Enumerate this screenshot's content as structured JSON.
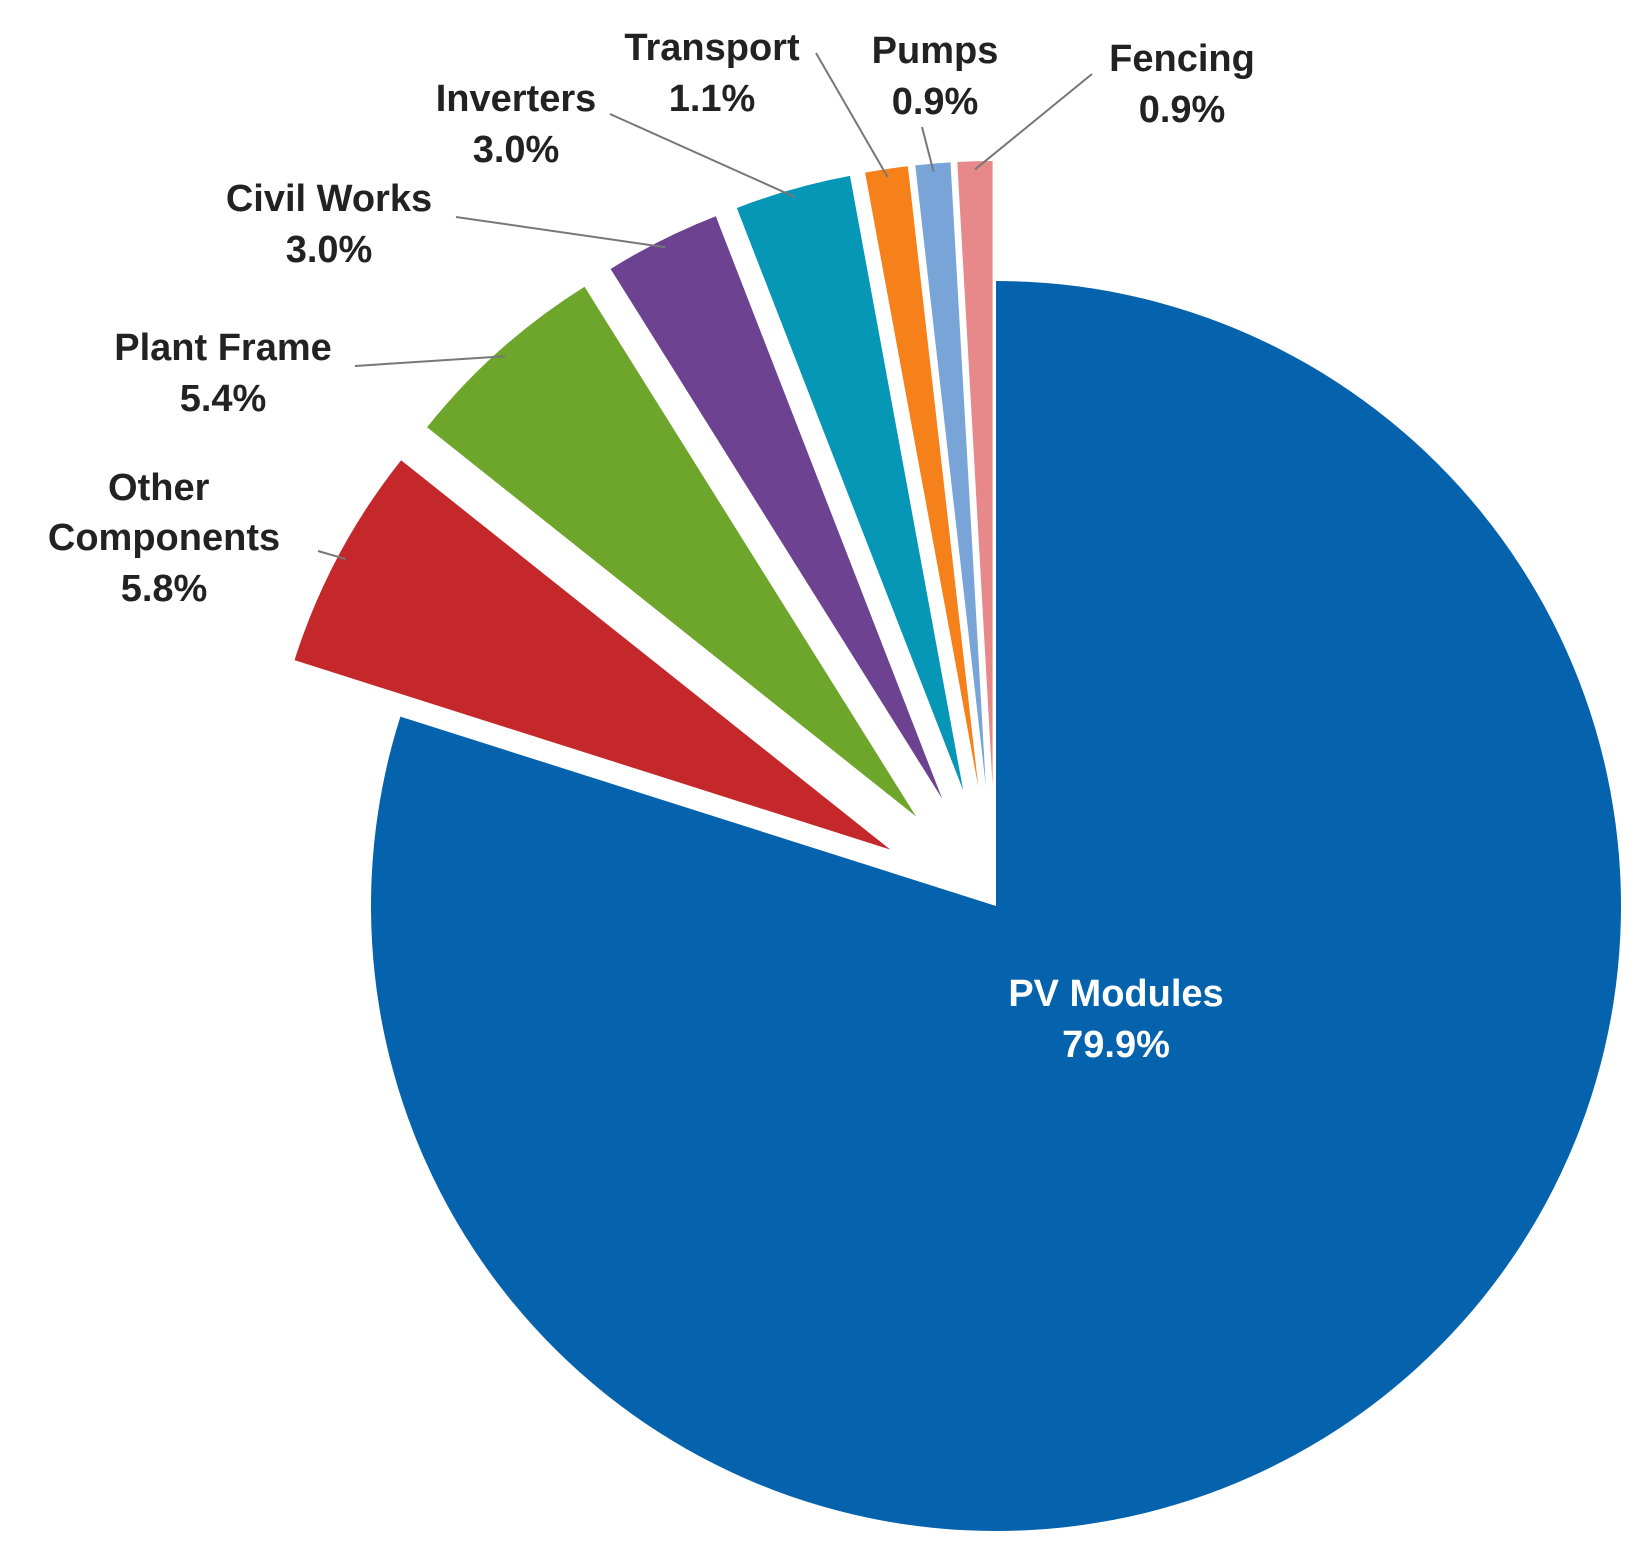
{
  "chart_data": {
    "type": "pie",
    "categories": [
      "PV Modules",
      "Other Components",
      "Plant Frame",
      "Civil Works",
      "Inverters",
      "Transport",
      "Pumps",
      "Fencing"
    ],
    "values": [
      79.9,
      5.8,
      5.4,
      3.0,
      3.0,
      1.1,
      0.9,
      0.9
    ],
    "value_labels": [
      "79.9%",
      "5.8%",
      "5.4%",
      "3.0%",
      "3.0%",
      "1.1%",
      "0.9%",
      "0.9%"
    ],
    "colors": [
      "#0562ad",
      "#c4282b",
      "#6ea52b",
      "#6d4391",
      "#0597b5",
      "#f6801a",
      "#79a4d8",
      "#e7898b"
    ]
  }
}
